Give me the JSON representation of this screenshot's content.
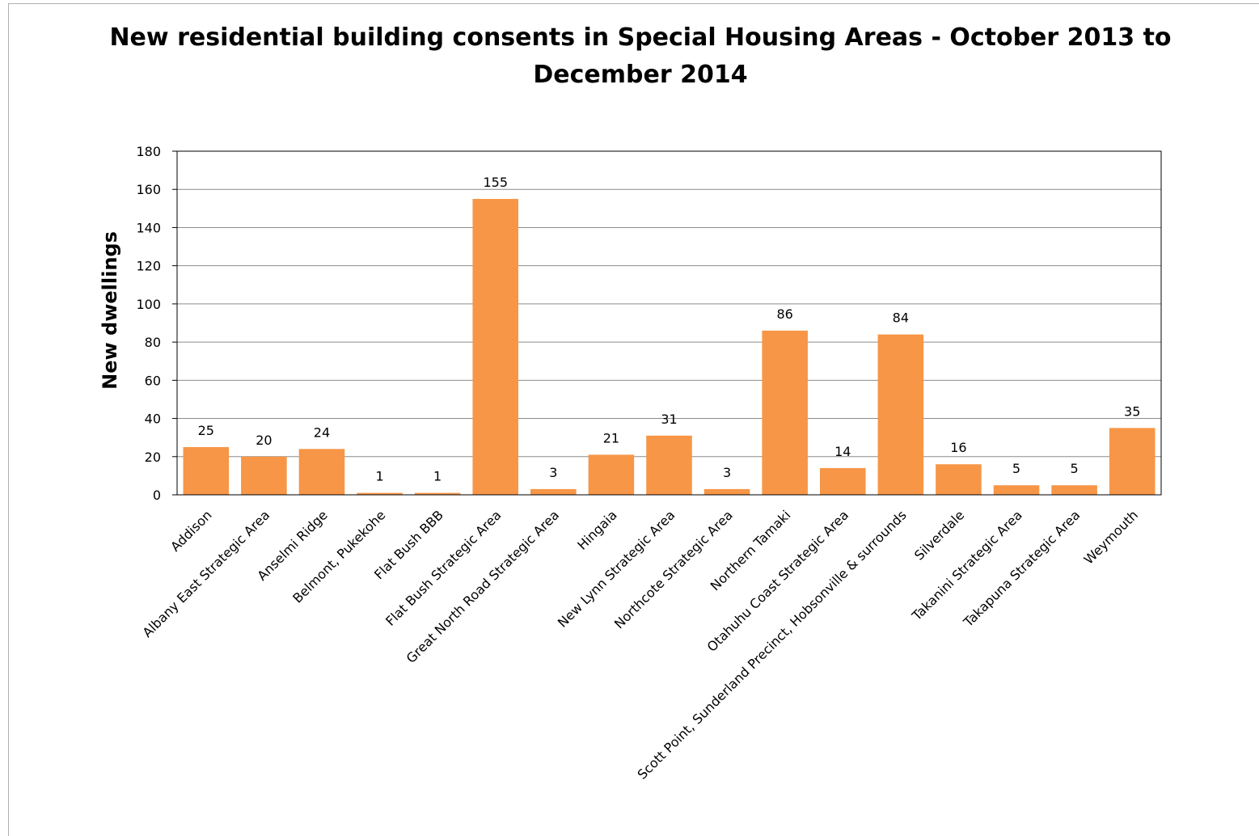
{
  "chart_data": {
    "type": "bar",
    "title": "New residential building consents in Special Housing Areas - October 2013 to December 2014",
    "xlabel": "",
    "ylabel": "New dwellings",
    "ylim": [
      0,
      180
    ],
    "yticks": [
      0,
      20,
      40,
      60,
      80,
      100,
      120,
      140,
      160,
      180
    ],
    "grid": true,
    "legend": "none",
    "bar_color": "#F79646",
    "categories": [
      "Addison",
      "Albany East Strategic Area",
      "Anselmi Ridge",
      "Belmont, Pukekohe",
      "Flat Bush BBB",
      "Flat Bush Strategic Area",
      "Great North Road Strategic Area",
      "Hingaia",
      "New Lynn Strategic Area",
      "Northcote Strategic Area",
      "Northern Tamaki",
      "Otahuhu Coast Strategic Area",
      "Scott Point, Sunderland Precinct, Hobsonville & surrounds",
      "Silverdale",
      "Takanini Strategic Area",
      "Takapuna Strategic Area",
      "Weymouth"
    ],
    "values": [
      25,
      20,
      24,
      1,
      1,
      155,
      3,
      21,
      31,
      3,
      86,
      14,
      84,
      16,
      5,
      5,
      35
    ],
    "data_labels": [
      "25",
      "20",
      "24",
      "1",
      "1",
      "155",
      "3",
      "21",
      "31",
      "3",
      "86",
      "14",
      "84",
      "16",
      "5",
      "5",
      "35"
    ]
  }
}
